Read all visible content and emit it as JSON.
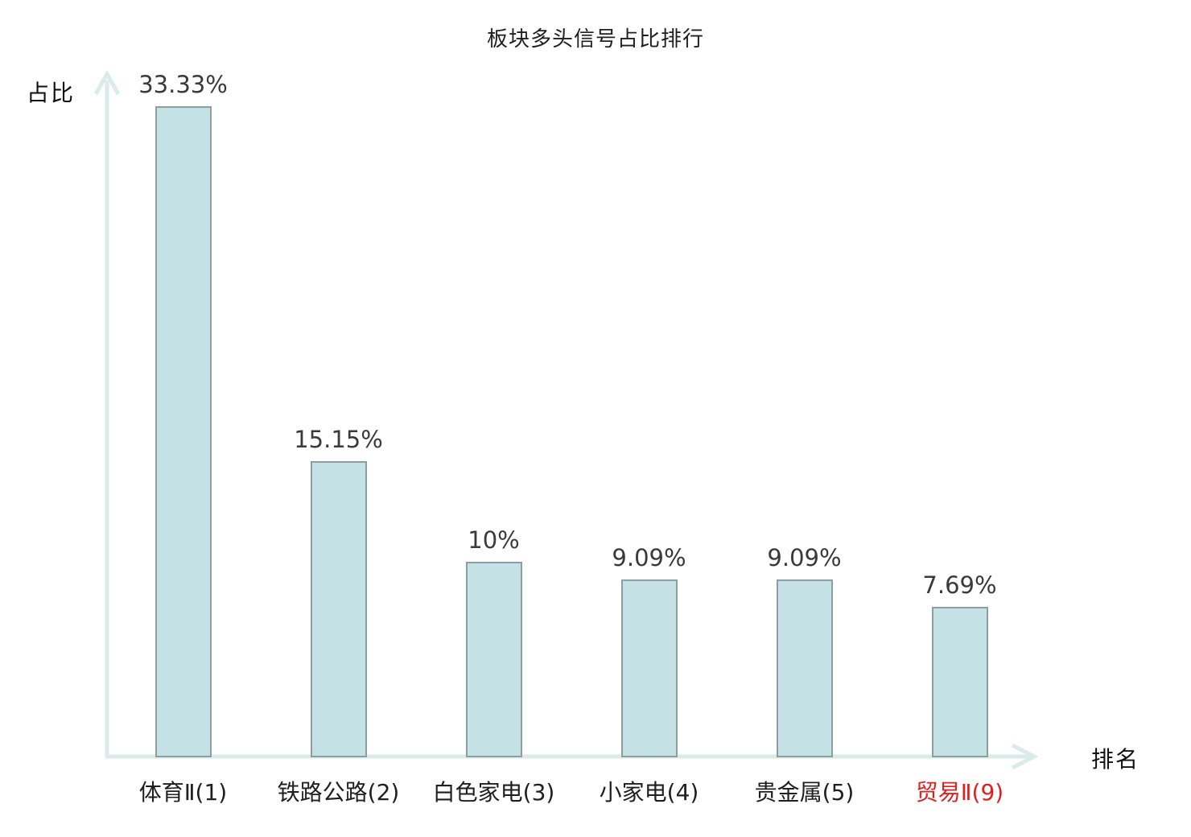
{
  "chart_data": {
    "type": "bar",
    "title": "板块多头信号占比排行",
    "xlabel": "排名",
    "ylabel": "占比",
    "categories": [
      "体育Ⅱ(1)",
      "铁路公路(2)",
      "白色家电(3)",
      "小家电(4)",
      "贵金属(5)",
      "贸易Ⅱ(9)"
    ],
    "values": [
      33.33,
      15.15,
      10,
      9.09,
      9.09,
      7.69
    ],
    "value_labels": [
      "33.33%",
      "15.15%",
      "10%",
      "9.09%",
      "9.09%",
      "7.69%"
    ],
    "unit": "%",
    "ylim": [
      0,
      35.15
    ],
    "grid": false,
    "legend": null,
    "highlight_index": 5,
    "colors": {
      "bar_fill": "#c4e2e5",
      "bar_border": "#8d9da0",
      "axis": "#d9ece7",
      "value_text": "#3a3a3a",
      "category_text": "#1f1f1f",
      "highlight_text": "#e01f1f"
    }
  }
}
